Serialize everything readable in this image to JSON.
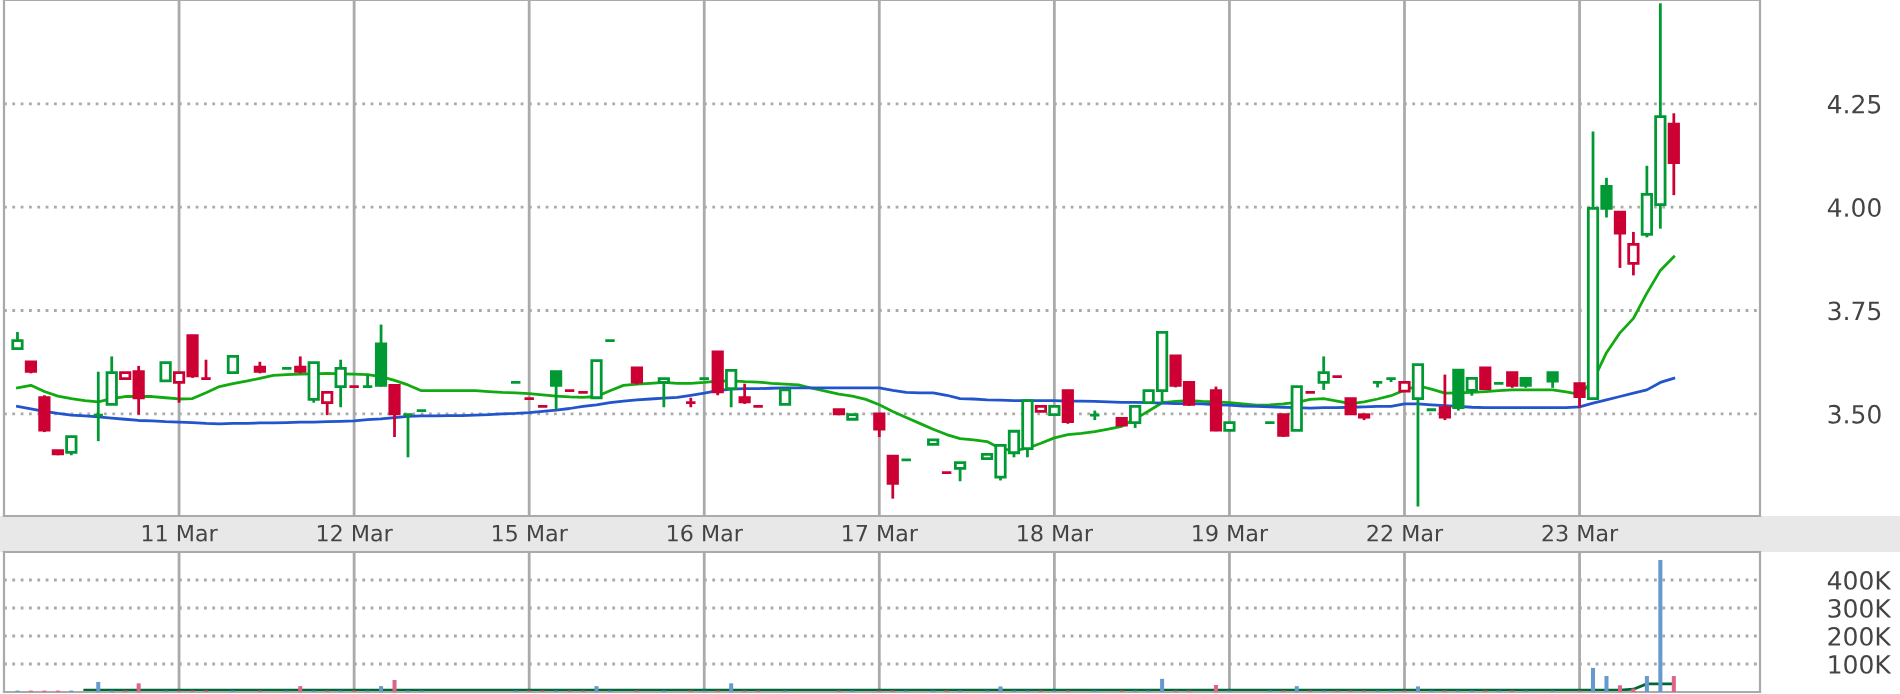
{
  "chart_data": [
    {
      "type": "candlestick",
      "categories": [
        null,
        null,
        null,
        null,
        null,
        null,
        null,
        null,
        null,
        null,
        null,
        null,
        "11 Mar",
        null,
        null,
        null,
        null,
        null,
        null,
        null,
        null,
        null,
        null,
        null,
        null,
        "12 Mar",
        null,
        null,
        null,
        null,
        null,
        null,
        null,
        null,
        null,
        null,
        null,
        null,
        "15 Mar",
        null,
        null,
        null,
        null,
        null,
        null,
        null,
        null,
        null,
        null,
        null,
        null,
        "16 Mar",
        null,
        null,
        null,
        null,
        null,
        null,
        null,
        null,
        null,
        null,
        null,
        null,
        "17 Mar",
        null,
        null,
        null,
        null,
        null,
        null,
        null,
        null,
        null,
        null,
        null,
        null,
        "18 Mar",
        null,
        null,
        null,
        null,
        null,
        null,
        null,
        null,
        null,
        null,
        null,
        null,
        "19 Mar",
        null,
        null,
        null,
        null,
        null,
        null,
        null,
        null,
        null,
        null,
        null,
        null,
        "22 Mar",
        null,
        null,
        null,
        null,
        null,
        null,
        null,
        null,
        null,
        null,
        null,
        null,
        "23 Mar",
        null,
        null,
        null,
        null,
        null,
        null,
        null
      ],
      "ohlc": [
        [
          3.658,
          3.698,
          3.658,
          3.677
        ],
        [
          3.626,
          3.626,
          3.598,
          3.603
        ],
        [
          3.539,
          3.545,
          3.456,
          3.461
        ],
        [
          3.411,
          3.411,
          3.4,
          3.403
        ],
        [
          3.407,
          3.445,
          3.4,
          3.445
        ],
        null,
        [
          3.497,
          3.602,
          3.434,
          3.497
        ],
        [
          3.523,
          3.639,
          3.523,
          3.6
        ],
        [
          3.585,
          3.6,
          3.585,
          3.6
        ],
        [
          3.602,
          3.616,
          3.498,
          3.539
        ],
        null,
        [
          3.58,
          3.624,
          3.58,
          3.624
        ],
        [
          3.576,
          3.6,
          3.527,
          3.6
        ],
        [
          3.689,
          3.689,
          3.587,
          3.592
        ],
        [
          3.585,
          3.631,
          3.585,
          3.585
        ],
        null,
        [
          3.6,
          3.639,
          3.6,
          3.639
        ],
        null,
        [
          3.613,
          3.626,
          3.598,
          3.603
        ],
        null,
        [
          3.61,
          3.61,
          3.61,
          3.61
        ],
        [
          3.613,
          3.639,
          3.598,
          3.603
        ],
        [
          3.535,
          3.624,
          3.527,
          3.624
        ],
        [
          3.527,
          3.552,
          3.497,
          3.552
        ],
        [
          3.566,
          3.631,
          3.516,
          3.61
        ],
        [
          3.566,
          3.566,
          3.566,
          3.566
        ],
        [
          3.566,
          3.595,
          3.566,
          3.566
        ],
        [
          3.669,
          3.716,
          3.566,
          3.569
        ],
        [
          3.569,
          3.569,
          3.444,
          3.5
        ],
        [
          3.498,
          3.498,
          3.395,
          3.498
        ],
        [
          3.508,
          3.508,
          3.508,
          3.508
        ],
        null,
        null,
        null,
        null,
        null,
        null,
        [
          3.576,
          3.576,
          3.576,
          3.576
        ],
        [
          3.537,
          3.537,
          3.537,
          3.537
        ],
        [
          3.518,
          3.518,
          3.518,
          3.518
        ],
        [
          3.602,
          3.602,
          3.511,
          3.569
        ],
        [
          3.556,
          3.556,
          3.556,
          3.556
        ],
        [
          3.552,
          3.552,
          3.552,
          3.552
        ],
        [
          3.539,
          3.629,
          3.539,
          3.629
        ],
        [
          3.677,
          3.677,
          3.677,
          3.677
        ],
        null,
        [
          3.611,
          3.611,
          3.571,
          3.577
        ],
        null,
        [
          3.576,
          3.585,
          3.516,
          3.585
        ],
        null,
        [
          3.527,
          3.539,
          3.516,
          3.527
        ],
        [
          3.585,
          3.585,
          3.585,
          3.585
        ],
        [
          3.65,
          3.65,
          3.545,
          3.553
        ],
        [
          3.561,
          3.605,
          3.516,
          3.605
        ],
        [
          3.539,
          3.573,
          3.524,
          3.529
        ],
        [
          3.518,
          3.518,
          3.518,
          3.518
        ],
        null,
        [
          3.523,
          3.558,
          3.523,
          3.558
        ],
        null,
        null,
        null,
        [
          3.51,
          3.51,
          3.497,
          3.5
        ],
        [
          3.487,
          3.498,
          3.487,
          3.498
        ],
        null,
        [
          3.5,
          3.5,
          3.444,
          3.463
        ],
        [
          3.398,
          3.398,
          3.295,
          3.332
        ],
        [
          3.389,
          3.389,
          3.389,
          3.389
        ],
        null,
        [
          3.426,
          3.437,
          3.426,
          3.437
        ],
        [
          3.358,
          3.358,
          3.358,
          3.358
        ],
        [
          3.368,
          3.382,
          3.337,
          3.382
        ],
        null,
        [
          3.392,
          3.402,
          3.392,
          3.402
        ],
        [
          3.347,
          3.424,
          3.339,
          3.424
        ],
        [
          3.406,
          3.458,
          3.395,
          3.458
        ],
        [
          3.416,
          3.532,
          3.395,
          3.532
        ],
        [
          3.506,
          3.518,
          3.506,
          3.518
        ],
        [
          3.498,
          3.518,
          3.498,
          3.518
        ],
        [
          3.556,
          3.556,
          3.476,
          3.481
        ],
        null,
        [
          3.497,
          3.508,
          3.485,
          3.497
        ],
        null,
        [
          3.489,
          3.489,
          3.473,
          3.473
        ],
        [
          3.479,
          3.518,
          3.466,
          3.518
        ],
        [
          3.527,
          3.556,
          3.527,
          3.556
        ],
        [
          3.556,
          3.697,
          3.524,
          3.697
        ],
        [
          3.64,
          3.64,
          3.564,
          3.569
        ],
        [
          3.576,
          3.576,
          3.519,
          3.523
        ],
        null,
        [
          3.556,
          3.566,
          3.458,
          3.461
        ],
        [
          3.46,
          3.479,
          3.46,
          3.479
        ],
        null,
        null,
        [
          3.479,
          3.479,
          3.479,
          3.479
        ],
        [
          3.498,
          3.498,
          3.444,
          3.448
        ],
        [
          3.46,
          3.566,
          3.46,
          3.566
        ],
        [
          3.552,
          3.552,
          3.552,
          3.552
        ],
        [
          3.576,
          3.639,
          3.558,
          3.6
        ],
        [
          3.59,
          3.59,
          3.59,
          3.59
        ],
        [
          3.537,
          3.537,
          3.5,
          3.5
        ],
        [
          3.498,
          3.498,
          3.485,
          3.492
        ],
        [
          3.576,
          3.576,
          3.564,
          3.576
        ],
        [
          3.585,
          3.585,
          3.577,
          3.585
        ],
        [
          3.555,
          3.576,
          3.555,
          3.576
        ],
        [
          3.537,
          3.619,
          3.276,
          3.619
        ],
        [
          3.51,
          3.51,
          3.51,
          3.51
        ],
        [
          3.515,
          3.595,
          3.485,
          3.492
        ],
        [
          3.606,
          3.606,
          3.508,
          3.515
        ],
        [
          3.557,
          3.586,
          3.544,
          3.586
        ],
        [
          3.611,
          3.611,
          3.561,
          3.561
        ],
        [
          3.574,
          3.574,
          3.574,
          3.574
        ],
        [
          3.6,
          3.6,
          3.563,
          3.569
        ],
        [
          3.586,
          3.586,
          3.563,
          3.569
        ],
        null,
        [
          3.6,
          3.6,
          3.563,
          3.579
        ],
        null,
        [
          3.573,
          3.573,
          3.515,
          3.542
        ],
        [
          3.537,
          4.183,
          3.537,
          3.997
        ],
        [
          4.05,
          4.071,
          3.975,
          3.997
        ],
        [
          3.988,
          3.988,
          3.853,
          3.937
        ],
        [
          3.864,
          3.94,
          3.835,
          3.91
        ],
        [
          3.934,
          4.1,
          3.927,
          4.031
        ],
        [
          4.006,
          4.493,
          3.948,
          4.219
        ],
        [
          4.201,
          4.227,
          4.029,
          4.108
        ]
      ],
      "colors": [
        "#009933",
        "#cc0033",
        "#cc0033",
        "#cc0033",
        "#009933",
        null,
        "#009933",
        "#009933",
        "#cc0033",
        "#cc0033",
        null,
        "#009933",
        "#cc0033",
        "#cc0033",
        "#cc0033",
        null,
        "#009933",
        null,
        "#cc0033",
        null,
        "#009933",
        "#cc0033",
        "#009933",
        "#cc0033",
        "#009933",
        "#cc0033",
        "#009933",
        "#009933",
        "#cc0033",
        "#009933",
        "#009933",
        null,
        null,
        null,
        null,
        null,
        null,
        "#009933",
        "#cc0033",
        "#cc0033",
        "#009933",
        "#cc0033",
        "#cc0033",
        "#009933",
        "#009933",
        null,
        "#cc0033",
        null,
        "#009933",
        null,
        "#cc0033",
        "#009933",
        "#cc0033",
        "#009933",
        "#cc0033",
        "#cc0033",
        null,
        "#009933",
        null,
        null,
        null,
        "#cc0033",
        "#009933",
        null,
        "#cc0033",
        "#cc0033",
        "#009933",
        null,
        "#009933",
        "#cc0033",
        "#009933",
        null,
        "#009933",
        "#009933",
        "#009933",
        "#009933",
        "#cc0033",
        "#009933",
        "#cc0033",
        null,
        "#009933",
        null,
        "#cc0033",
        "#009933",
        "#009933",
        "#009933",
        "#cc0033",
        "#cc0033",
        null,
        "#cc0033",
        "#009933",
        null,
        null,
        "#009933",
        "#cc0033",
        "#009933",
        "#cc0033",
        "#009933",
        "#cc0033",
        "#cc0033",
        "#cc0033",
        "#009933",
        "#009933",
        "#cc0033",
        "#009933",
        "#009933",
        "#cc0033",
        "#009933",
        "#009933",
        "#cc0033",
        "#009933",
        "#cc0033",
        "#009933",
        null,
        "#009933",
        null,
        "#cc0033",
        "#009933",
        "#009933",
        "#cc0033",
        "#cc0033",
        "#009933",
        "#009933",
        "#cc0033"
      ],
      "series": [
        {
          "type": "line",
          "color": "#11aa11",
          "values": [
            3.563,
            3.569,
            3.554,
            3.543,
            3.537,
            3.532,
            3.529,
            3.537,
            3.542,
            3.542,
            3.542,
            3.539,
            3.536,
            3.537,
            3.551,
            3.566,
            3.573,
            3.579,
            3.586,
            3.593,
            3.595,
            3.596,
            3.597,
            3.598,
            3.597,
            3.596,
            3.595,
            3.59,
            3.581,
            3.57,
            3.556,
            3.556,
            3.556,
            3.556,
            3.556,
            3.554,
            3.552,
            3.551,
            3.549,
            3.546,
            3.543,
            3.541,
            3.54,
            3.542,
            3.556,
            3.569,
            3.572,
            3.574,
            3.576,
            3.574,
            3.574,
            3.576,
            3.579,
            3.58,
            3.578,
            3.577,
            3.574,
            3.572,
            3.57,
            3.562,
            3.555,
            3.548,
            3.543,
            3.535,
            3.522,
            3.506,
            3.491,
            3.477,
            3.463,
            3.45,
            3.44,
            3.437,
            3.433,
            3.416,
            3.411,
            3.417,
            3.429,
            3.442,
            3.45,
            3.453,
            3.457,
            3.463,
            3.47,
            3.488,
            3.507,
            3.527,
            3.53,
            3.532,
            3.53,
            3.529,
            3.527,
            3.524,
            3.521,
            3.522,
            3.524,
            3.528,
            3.535,
            3.537,
            3.531,
            3.525,
            3.529,
            3.536,
            3.544,
            3.557,
            3.568,
            3.56,
            3.55,
            3.551,
            3.552,
            3.554,
            3.556,
            3.558,
            3.558,
            3.558,
            3.558,
            3.553,
            3.547,
            3.58,
            3.648,
            3.696,
            3.731,
            3.792,
            3.847,
            3.88
          ]
        },
        {
          "type": "line",
          "color": "#2255cc",
          "values": [
            3.518,
            3.512,
            3.506,
            3.501,
            3.497,
            3.495,
            3.493,
            3.49,
            3.487,
            3.484,
            3.483,
            3.481,
            3.48,
            3.479,
            3.477,
            3.476,
            3.477,
            3.477,
            3.478,
            3.478,
            3.479,
            3.48,
            3.48,
            3.481,
            3.482,
            3.483,
            3.486,
            3.488,
            3.491,
            3.494,
            3.495,
            3.495,
            3.496,
            3.496,
            3.497,
            3.498,
            3.5,
            3.501,
            3.503,
            3.506,
            3.509,
            3.513,
            3.518,
            3.522,
            3.527,
            3.531,
            3.534,
            3.536,
            3.538,
            3.54,
            3.545,
            3.55,
            3.556,
            3.56,
            3.561,
            3.561,
            3.562,
            3.563,
            3.563,
            3.563,
            3.563,
            3.563,
            3.563,
            3.563,
            3.563,
            3.557,
            3.552,
            3.551,
            3.551,
            3.545,
            3.537,
            3.536,
            3.534,
            3.533,
            3.532,
            3.532,
            3.532,
            3.532,
            3.531,
            3.531,
            3.53,
            3.529,
            3.528,
            3.528,
            3.527,
            3.526,
            3.525,
            3.525,
            3.524,
            3.522,
            3.521,
            3.519,
            3.518,
            3.517,
            3.516,
            3.515,
            3.514,
            3.515,
            3.515,
            3.516,
            3.517,
            3.518,
            3.518,
            3.524,
            3.524,
            3.522,
            3.52,
            3.518,
            3.516,
            3.515,
            3.515,
            3.515,
            3.515,
            3.515,
            3.515,
            3.515,
            3.517,
            3.526,
            3.534,
            3.542,
            3.55,
            3.558,
            3.576,
            3.586
          ]
        }
      ],
      "ylim": [
        3.253,
        4.501
      ],
      "yticks": [
        {
          "value": 3.5,
          "label": "3.50"
        },
        {
          "value": 3.75,
          "label": "3.75"
        },
        {
          "value": 4.0,
          "label": "4.00"
        },
        {
          "value": 4.25,
          "label": "4.25"
        }
      ],
      "grid": true
    },
    {
      "type": "bar",
      "categories": [
        null,
        null,
        null,
        null,
        null,
        null,
        null,
        null,
        null,
        null,
        null,
        null,
        null,
        null,
        null,
        null,
        null,
        null,
        null,
        null,
        null,
        null,
        null,
        null,
        null,
        null,
        null,
        null,
        null,
        null,
        null,
        null,
        null,
        null,
        null,
        null,
        null,
        null,
        null,
        null,
        null,
        null,
        null,
        null,
        null,
        null,
        null,
        null,
        null,
        null,
        null,
        null,
        null,
        null,
        null,
        null,
        null,
        null,
        null,
        null,
        null,
        null,
        null,
        null,
        null,
        null,
        null,
        null,
        null,
        null,
        null,
        null,
        null,
        null,
        null,
        null,
        null,
        null,
        null,
        null,
        null,
        null,
        null,
        null,
        null,
        null,
        null,
        null,
        null,
        null,
        null,
        null,
        null,
        null,
        null,
        null,
        null,
        null,
        null,
        null,
        null,
        null,
        null,
        null,
        null,
        null,
        null,
        null,
        null,
        null,
        null,
        null,
        null,
        null,
        null,
        null,
        null,
        null,
        null,
        null,
        null,
        null,
        null,
        null
      ],
      "series": [
        {
          "type": "bar",
          "values": [
            5000,
            5000,
            5000,
            5000,
            5000,
            null,
            36000,
            5000,
            5000,
            31000,
            null,
            5000,
            5000,
            5000,
            5000,
            null,
            5000,
            null,
            5000,
            null,
            5000,
            21000,
            5000,
            5000,
            5000,
            5000,
            5000,
            21000,
            43000,
            5000,
            5000,
            null,
            null,
            null,
            null,
            null,
            null,
            5000,
            5000,
            5000,
            5000,
            5000,
            5000,
            21000,
            5000,
            null,
            5000,
            null,
            5000,
            null,
            5000,
            5000,
            5000,
            31000,
            5000,
            5000,
            null,
            5000,
            null,
            null,
            null,
            5000,
            5000,
            null,
            5000,
            5000,
            5000,
            null,
            5000,
            5000,
            5000,
            null,
            5000,
            20000,
            5000,
            5000,
            5000,
            5000,
            5000,
            null,
            5000,
            null,
            5000,
            5000,
            5000,
            47000,
            5000,
            5000,
            null,
            25000,
            5000,
            null,
            null,
            5000,
            5000,
            21000,
            5000,
            5000,
            5000,
            5000,
            5000,
            5000,
            5000,
            5000,
            20000,
            5000,
            5000,
            5000,
            5000,
            5000,
            5000,
            5000,
            5000,
            null,
            5000,
            null,
            5000,
            86000,
            57000,
            24000,
            12000,
            57000,
            471000,
            57000
          ],
          "colors": [
            "#6699cc",
            "#dd6688",
            "#dd6688",
            "#dd6688",
            "#6699cc",
            null,
            "#6699cc",
            "#6699cc",
            "#dd6688",
            "#dd6688",
            null,
            "#6699cc",
            "#dd6688",
            "#dd6688",
            "#dd6688",
            null,
            "#6699cc",
            null,
            "#dd6688",
            null,
            "#6699cc",
            "#dd6688",
            "#6699cc",
            "#dd6688",
            "#6699cc",
            "#dd6688",
            "#6699cc",
            "#6699cc",
            "#dd6688",
            "#6699cc",
            "#6699cc",
            null,
            null,
            null,
            null,
            null,
            null,
            "#6699cc",
            "#dd6688",
            "#dd6688",
            "#6699cc",
            "#dd6688",
            "#dd6688",
            "#6699cc",
            "#6699cc",
            null,
            "#dd6688",
            null,
            "#6699cc",
            null,
            "#dd6688",
            "#6699cc",
            "#dd6688",
            "#6699cc",
            "#dd6688",
            "#dd6688",
            null,
            "#6699cc",
            null,
            null,
            null,
            "#dd6688",
            "#6699cc",
            null,
            "#dd6688",
            "#dd6688",
            "#6699cc",
            null,
            "#6699cc",
            "#dd6688",
            "#6699cc",
            null,
            "#6699cc",
            "#6699cc",
            "#6699cc",
            "#6699cc",
            "#dd6688",
            "#6699cc",
            "#dd6688",
            null,
            "#6699cc",
            null,
            "#dd6688",
            "#6699cc",
            "#6699cc",
            "#6699cc",
            "#dd6688",
            "#dd6688",
            null,
            "#dd6688",
            "#6699cc",
            null,
            null,
            "#6699cc",
            "#dd6688",
            "#6699cc",
            "#dd6688",
            "#6699cc",
            "#dd6688",
            "#dd6688",
            "#dd6688",
            "#6699cc",
            "#6699cc",
            "#dd6688",
            "#6699cc",
            "#6699cc",
            "#dd6688",
            "#6699cc",
            "#6699cc",
            "#dd6688",
            "#6699cc",
            "#dd6688",
            "#6699cc",
            null,
            "#6699cc",
            null,
            "#dd6688",
            "#6699cc",
            "#6699cc",
            "#dd6688",
            "#dd6688",
            "#6699cc",
            "#6699cc",
            "#dd6688"
          ]
        },
        {
          "type": "line",
          "color": "#006633",
          "values": [
            null,
            null,
            null,
            null,
            null,
            7000,
            7000,
            7000,
            7000,
            7000,
            7000,
            7000,
            7000,
            7000,
            7000,
            7000,
            7000,
            7000,
            7000,
            7000,
            7000,
            7000,
            7000,
            7000,
            7000,
            7000,
            7000,
            7000,
            7000,
            7000,
            7000,
            7000,
            7000,
            7000,
            7000,
            7000,
            7000,
            7000,
            7000,
            7000,
            7000,
            7000,
            7000,
            7000,
            7000,
            7000,
            7000,
            7000,
            7000,
            7000,
            7000,
            7000,
            7000,
            7000,
            7000,
            7000,
            7000,
            7000,
            7000,
            7000,
            7000,
            7000,
            7000,
            7000,
            7000,
            7000,
            7000,
            7000,
            7000,
            7000,
            7000,
            7000,
            7000,
            7000,
            7000,
            7000,
            7000,
            7000,
            7000,
            7000,
            7000,
            7000,
            7000,
            7000,
            7000,
            7000,
            7000,
            7000,
            7000,
            7000,
            7000,
            7000,
            7000,
            7000,
            7000,
            7000,
            7000,
            7000,
            7000,
            7000,
            7000,
            7000,
            7000,
            7000,
            7000,
            7000,
            7000,
            7000,
            7000,
            7000,
            7000,
            7000,
            7000,
            7000,
            7000,
            7000,
            7000,
            7000,
            7000,
            7000,
            10000,
            29000,
            29000,
            29000
          ]
        }
      ],
      "ylim": [
        0,
        500000
      ],
      "yticks": [
        {
          "value": 100000,
          "label": "100K"
        },
        {
          "value": 200000,
          "label": "200K"
        },
        {
          "value": 300000,
          "label": "300K"
        },
        {
          "value": 400000,
          "label": "400K"
        }
      ],
      "grid": true,
      "tick_labels": "y"
    }
  ]
}
